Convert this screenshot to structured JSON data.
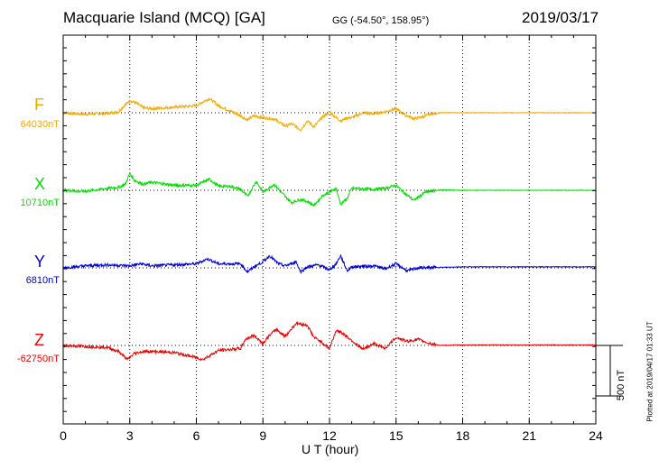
{
  "header": {
    "station": "Macquarie Island (MCQ)  [GA]",
    "coords": "GG (-54.50°, 158.95°)",
    "date": "2019/03/17"
  },
  "plotted_note": "Plotted at 2019/04/17 01:33 UT",
  "scale_bar": {
    "value_nT": 500,
    "label": "500 nT"
  },
  "chart_data": {
    "type": "line",
    "xlabel": "U T (hour)",
    "xlim": [
      0,
      24
    ],
    "xticks": [
      0,
      3,
      6,
      9,
      12,
      15,
      18,
      21,
      24
    ],
    "grid": true,
    "series": [
      {
        "name": "F",
        "baseline_label": "64030nT",
        "color": "#f5a800",
        "points": [
          [
            0,
            0
          ],
          [
            1,
            -15
          ],
          [
            2,
            -5
          ],
          [
            2.5,
            10
          ],
          [
            2.7,
            60
          ],
          [
            2.9,
            100
          ],
          [
            3.0,
            120
          ],
          [
            3.3,
            95
          ],
          [
            3.6,
            50
          ],
          [
            4,
            40
          ],
          [
            5,
            55
          ],
          [
            6,
            70
          ],
          [
            6.4,
            120
          ],
          [
            6.6,
            140
          ],
          [
            7.0,
            70
          ],
          [
            7.5,
            20
          ],
          [
            8.0,
            -30
          ],
          [
            8.3,
            -70
          ],
          [
            8.6,
            -30
          ],
          [
            9.0,
            -50
          ],
          [
            9.5,
            -60
          ],
          [
            10.0,
            -130
          ],
          [
            10.3,
            -110
          ],
          [
            10.7,
            -170
          ],
          [
            11.0,
            -80
          ],
          [
            11.3,
            -140
          ],
          [
            11.6,
            -60
          ],
          [
            12.0,
            10
          ],
          [
            12.3,
            -50
          ],
          [
            12.5,
            -80
          ],
          [
            12.8,
            -50
          ],
          [
            13.0,
            -50
          ],
          [
            13.5,
            0
          ],
          [
            14.0,
            -10
          ],
          [
            14.5,
            10
          ],
          [
            15.0,
            40
          ],
          [
            15.4,
            -20
          ],
          [
            15.8,
            -60
          ],
          [
            16.2,
            -40
          ],
          [
            16.6,
            -10
          ],
          [
            17,
            0
          ],
          [
            18,
            0
          ],
          [
            21,
            0
          ],
          [
            24,
            0
          ]
        ]
      },
      {
        "name": "X",
        "baseline_label": "10710nT",
        "color": "#00e000",
        "points": [
          [
            0,
            0
          ],
          [
            1,
            -10
          ],
          [
            2,
            20
          ],
          [
            2.5,
            30
          ],
          [
            2.8,
            60
          ],
          [
            3.0,
            170
          ],
          [
            3.2,
            100
          ],
          [
            3.6,
            60
          ],
          [
            4,
            80
          ],
          [
            5,
            50
          ],
          [
            6,
            50
          ],
          [
            6.3,
            80
          ],
          [
            6.6,
            110
          ],
          [
            7.0,
            40
          ],
          [
            7.5,
            40
          ],
          [
            8.0,
            10
          ],
          [
            8.3,
            -60
          ],
          [
            8.7,
            90
          ],
          [
            9.0,
            -20
          ],
          [
            9.5,
            60
          ],
          [
            10.0,
            -60
          ],
          [
            10.3,
            -120
          ],
          [
            10.7,
            -90
          ],
          [
            11.0,
            -110
          ],
          [
            11.3,
            -150
          ],
          [
            11.7,
            -50
          ],
          [
            12.0,
            -20
          ],
          [
            12.3,
            20
          ],
          [
            12.5,
            -140
          ],
          [
            12.8,
            -80
          ],
          [
            13,
            20
          ],
          [
            14,
            10
          ],
          [
            14.5,
            20
          ],
          [
            15.0,
            50
          ],
          [
            15.4,
            -30
          ],
          [
            15.8,
            -100
          ],
          [
            16.3,
            -20
          ],
          [
            17,
            5
          ],
          [
            18,
            0
          ],
          [
            21,
            0
          ],
          [
            24,
            0
          ]
        ]
      },
      {
        "name": "Y",
        "baseline_label": "6810nT",
        "color": "#0000dd",
        "points": [
          [
            0,
            0
          ],
          [
            1,
            20
          ],
          [
            2,
            30
          ],
          [
            3,
            20
          ],
          [
            3.5,
            40
          ],
          [
            4,
            20
          ],
          [
            5,
            30
          ],
          [
            6,
            40
          ],
          [
            6.5,
            90
          ],
          [
            7,
            40
          ],
          [
            8,
            40
          ],
          [
            8.3,
            -40
          ],
          [
            8.6,
            10
          ],
          [
            9,
            60
          ],
          [
            9.3,
            120
          ],
          [
            9.7,
            40
          ],
          [
            10.0,
            20
          ],
          [
            10.5,
            60
          ],
          [
            10.7,
            -40
          ],
          [
            11,
            10
          ],
          [
            11.5,
            30
          ],
          [
            12,
            -20
          ],
          [
            12.3,
            40
          ],
          [
            12.5,
            120
          ],
          [
            12.8,
            -30
          ],
          [
            13,
            10
          ],
          [
            14,
            20
          ],
          [
            14.5,
            -10
          ],
          [
            15,
            40
          ],
          [
            15.5,
            -30
          ],
          [
            16,
            0
          ],
          [
            17,
            5
          ],
          [
            18,
            10
          ],
          [
            21,
            10
          ],
          [
            24,
            10
          ]
        ]
      },
      {
        "name": "Z",
        "baseline_label": "-62750nT",
        "color": "#ee0000",
        "points": [
          [
            0,
            0
          ],
          [
            1,
            -10
          ],
          [
            2,
            -20
          ],
          [
            2.5,
            -60
          ],
          [
            2.9,
            -140
          ],
          [
            3.2,
            -80
          ],
          [
            3.6,
            -60
          ],
          [
            4,
            -60
          ],
          [
            5,
            -70
          ],
          [
            6,
            -120
          ],
          [
            6.3,
            -140
          ],
          [
            6.6,
            -100
          ],
          [
            7,
            -50
          ],
          [
            8,
            -30
          ],
          [
            8.2,
            60
          ],
          [
            8.6,
            100
          ],
          [
            9,
            20
          ],
          [
            9.3,
            100
          ],
          [
            9.6,
            160
          ],
          [
            10,
            90
          ],
          [
            10.5,
            220
          ],
          [
            11,
            200
          ],
          [
            11.3,
            80
          ],
          [
            11.6,
            40
          ],
          [
            12,
            -30
          ],
          [
            12.3,
            150
          ],
          [
            12.6,
            120
          ],
          [
            13,
            50
          ],
          [
            13.5,
            -40
          ],
          [
            14,
            20
          ],
          [
            14.5,
            -30
          ],
          [
            15,
            80
          ],
          [
            15.5,
            40
          ],
          [
            16,
            60
          ],
          [
            16.5,
            20
          ],
          [
            17,
            0
          ],
          [
            18,
            5
          ],
          [
            21,
            5
          ],
          [
            24,
            5
          ]
        ]
      }
    ]
  }
}
